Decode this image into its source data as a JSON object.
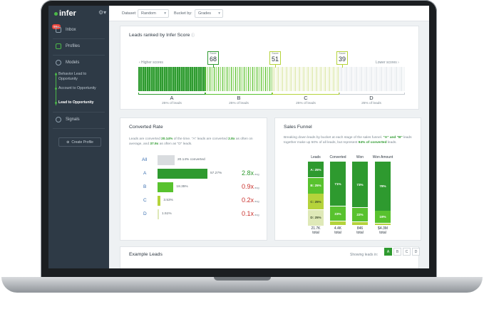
{
  "sidebar": {
    "logo": "infer",
    "badge": "99+",
    "inbox": "Inbox",
    "profiles": "Profiles",
    "models": "Models",
    "model_items": [
      "Behavior Lead to Opportunity",
      "Account to Opportunity",
      "Lead to Opportunity"
    ],
    "signals": "Signals",
    "create_profile": "Create Profile"
  },
  "topbar": {
    "dataset_label": "Dataset:",
    "dataset_value": "Random",
    "bucket_label": "Bucket by:",
    "bucket_value": "Grades"
  },
  "score_panel": {
    "title": "Leads ranked by Infer Score",
    "higher": "‹  Higher scores",
    "lower": "Lower scores  ›",
    "markers": [
      {
        "label": "Score",
        "value": "68",
        "color": "#2e9a2f"
      },
      {
        "label": "Score",
        "value": "51",
        "color": "#b5d33b"
      },
      {
        "label": "Score",
        "value": "39",
        "color": "#b5d33b"
      }
    ],
    "buckets": [
      {
        "letter": "A",
        "sub": "25% of leads"
      },
      {
        "letter": "B",
        "sub": "25% of leads"
      },
      {
        "letter": "C",
        "sub": "25% of leads"
      },
      {
        "letter": "D",
        "sub": "25% of leads"
      }
    ]
  },
  "converted": {
    "title": "Converted Rate",
    "desc_1": "Leads are converted ",
    "desc_rate": "20.14%",
    "desc_2": " of the time. \"A\" leads are converted ",
    "desc_a": "2.8x",
    "desc_3": " as often on average, and ",
    "desc_d": "37.9x",
    "desc_4": " as often as \"D\" leads.",
    "rows": [
      {
        "label": "All",
        "pct": "20.14% converted",
        "mult": "",
        "avg": "",
        "value": 20.14,
        "color": "#d9dcdf"
      },
      {
        "label": "A",
        "pct": "57.27%",
        "mult": "2.8x",
        "avg": "avg",
        "value": 57.27,
        "color": "#2e9a2f"
      },
      {
        "label": "B",
        "pct": "18.35%",
        "mult": "0.9x",
        "avg": "avg",
        "value": 18.35,
        "color": "#58c22e"
      },
      {
        "label": "C",
        "pct": "3.53%",
        "mult": "0.2x",
        "avg": "avg",
        "value": 3.53,
        "color": "#b5d33b"
      },
      {
        "label": "D",
        "pct": "1.51%",
        "mult": "0.1x",
        "avg": "avg",
        "value": 1.51,
        "color": "#dfe9b8"
      }
    ]
  },
  "funnel": {
    "title": "Sales Funnel",
    "desc_1": "Breaking down leads by bucket at each stage of the sales funnel. ",
    "desc_ab": "\"A\" and \"B\"",
    "desc_2": " leads together make up 50% of all leads, but represent ",
    "desc_conv": "94% of converted",
    "desc_3": " leads.",
    "columns": [
      {
        "head": "Leads",
        "total": "21.7K",
        "total_label": "total",
        "segs": [
          {
            "label": "A: 25%",
            "value": 25,
            "color": "#2e9a2f"
          },
          {
            "label": "B: 25%",
            "value": 25,
            "color": "#58c22e"
          },
          {
            "label": "C: 25%",
            "value": 25,
            "color": "#b5d33b"
          },
          {
            "label": "D: 25%",
            "value": 25,
            "color": "#dfe9b8"
          }
        ]
      },
      {
        "head": "Converted",
        "total": "4.4K",
        "total_label": "total",
        "segs": [
          {
            "label": "71%",
            "value": 71,
            "color": "#2e9a2f"
          },
          {
            "label": "23%",
            "value": 23,
            "color": "#58c22e"
          },
          {
            "label": "",
            "value": 6,
            "color": "#b5d33b"
          }
        ]
      },
      {
        "head": "Won",
        "total": "846",
        "total_label": "total",
        "segs": [
          {
            "label": "73%",
            "value": 73,
            "color": "#2e9a2f"
          },
          {
            "label": "22%",
            "value": 22,
            "color": "#58c22e"
          },
          {
            "label": "",
            "value": 5,
            "color": "#b5d33b"
          }
        ]
      },
      {
        "head": "Won Amount",
        "total": "$4.3M",
        "total_label": "total",
        "segs": [
          {
            "label": "78%",
            "value": 78,
            "color": "#2e9a2f"
          },
          {
            "label": "19%",
            "value": 19,
            "color": "#58c22e"
          },
          {
            "label": "",
            "value": 3,
            "color": "#b5d33b"
          }
        ]
      }
    ]
  },
  "examples": {
    "title": "Example Leads",
    "showing": "Showing leads in:",
    "grades": [
      "A",
      "B",
      "C",
      "D"
    ]
  }
}
